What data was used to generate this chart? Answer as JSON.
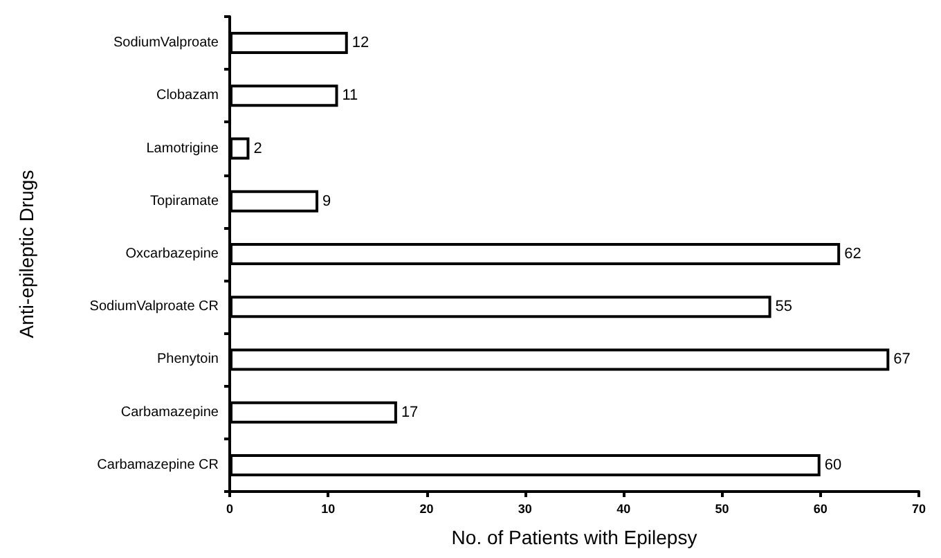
{
  "chart_data": {
    "type": "bar",
    "orientation": "horizontal",
    "xlabel": "No. of Patients with Epilepsy",
    "ylabel": "Anti-epileptic Drugs",
    "categories": [
      "SodiumValproate",
      "Clobazam",
      "Lamotrigine",
      "Topiramate",
      "Oxcarbazepine",
      "SodiumValproate CR",
      "Phenytoin",
      "Carbamazepine",
      "Carbamazepine CR"
    ],
    "values": [
      12,
      11,
      2,
      9,
      62,
      55,
      67,
      17,
      60
    ],
    "color": "#ffffff",
    "xlim": [
      0,
      70
    ],
    "xticks": [
      0,
      10,
      20,
      30,
      40,
      50,
      60,
      70
    ],
    "data_labels": true,
    "grid": false
  }
}
